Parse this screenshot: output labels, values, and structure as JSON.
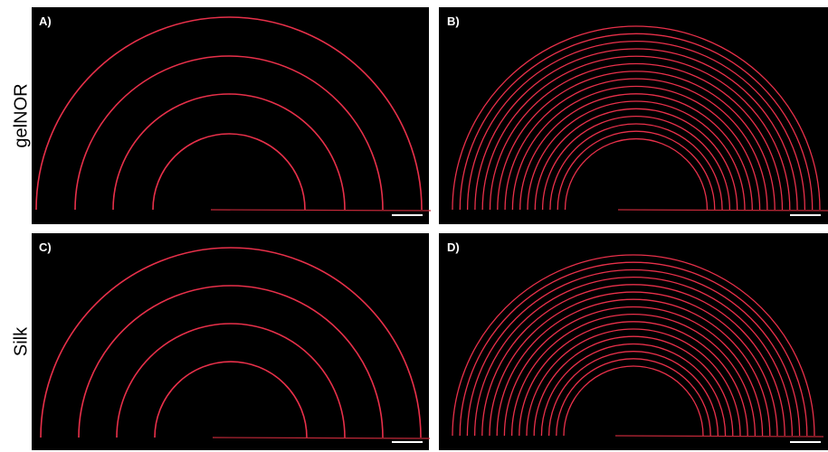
{
  "rows": [
    {
      "label": "gelNOR"
    },
    {
      "label": "Silk"
    }
  ],
  "panels": [
    {
      "label": "A)"
    },
    {
      "label": "B)"
    },
    {
      "label": "C)"
    },
    {
      "label": "D)"
    }
  ]
}
